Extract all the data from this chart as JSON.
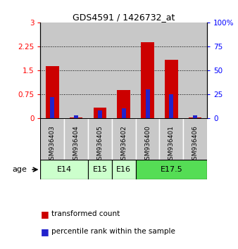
{
  "title": "GDS4591 / 1426732_at",
  "samples": [
    "GSM936403",
    "GSM936404",
    "GSM936405",
    "GSM936402",
    "GSM936400",
    "GSM936401",
    "GSM936406"
  ],
  "transformed_count": [
    1.62,
    0.02,
    0.32,
    0.88,
    2.38,
    1.82,
    0.02
  ],
  "percentile_rank": [
    22,
    3,
    8,
    10,
    30,
    25,
    3
  ],
  "ylim_left": [
    0,
    3
  ],
  "ylim_right": [
    0,
    100
  ],
  "yticks_left": [
    0,
    0.75,
    1.5,
    2.25,
    3
  ],
  "yticks_right": [
    0,
    25,
    50,
    75,
    100
  ],
  "bar_color_red": "#cc0000",
  "bar_color_blue": "#2222cc",
  "sample_bg_color": "#c8c8c8",
  "title_fontsize": 9,
  "tick_fontsize": 7.5,
  "legend_fontsize": 7.5,
  "bar_width": 0.55,
  "blue_bar_width": 0.18,
  "e14_color": "#ccffcc",
  "e15_color": "#ccffcc",
  "e16_color": "#ccffcc",
  "e175_color": "#55dd55",
  "legend_red": "transformed count",
  "legend_blue": "percentile rank within the sample",
  "age_groups": [
    {
      "label": "E14",
      "start": 0,
      "end": 1,
      "color": "#ccffcc"
    },
    {
      "label": "E15",
      "start": 2,
      "end": 2,
      "color": "#ccffcc"
    },
    {
      "label": "E16",
      "start": 3,
      "end": 3,
      "color": "#ccffcc"
    },
    {
      "label": "E17.5",
      "start": 4,
      "end": 6,
      "color": "#55dd55"
    }
  ]
}
